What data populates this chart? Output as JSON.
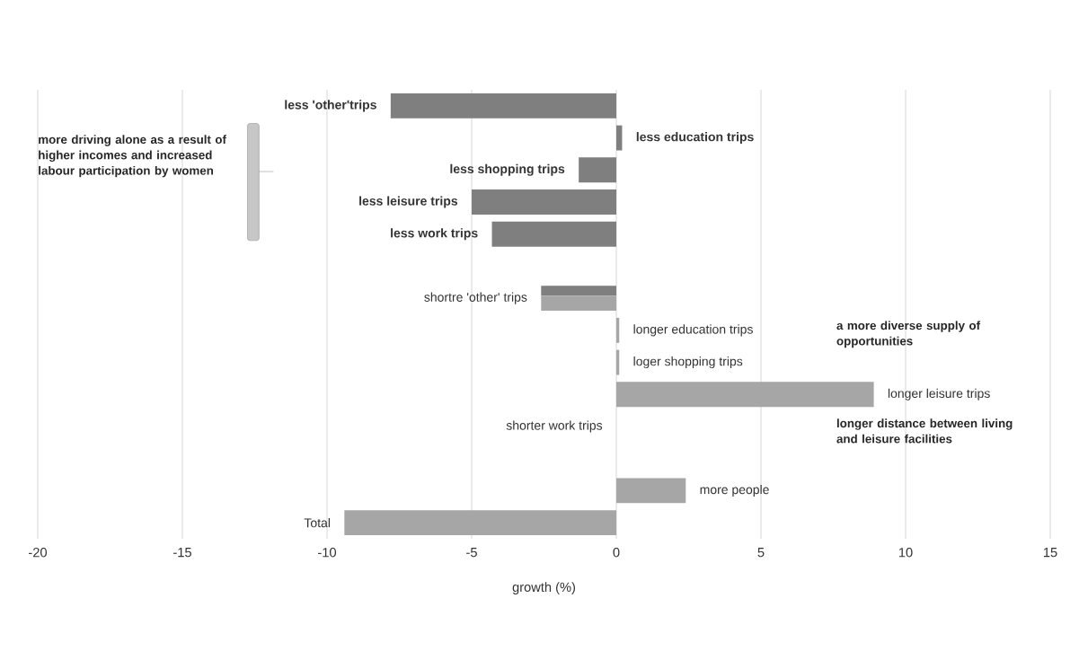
{
  "chart_data": {
    "type": "bar",
    "orientation": "horizontal",
    "categories": [
      "less 'other'trips",
      "less education trips",
      "less shopping trips",
      "less leisure trips",
      "less work trips",
      null,
      "shortre 'other' trips",
      "longer education trips",
      "loger shopping trips",
      "longer leisure trips",
      "shorter work trips",
      null,
      "more people",
      "Total"
    ],
    "series": [
      {
        "color": "#7f7f7f",
        "values": [
          -7.8,
          0.2,
          -1.3,
          -5.0,
          -4.3,
          null,
          -2.6,
          null,
          null,
          null,
          null,
          null,
          null,
          null
        ]
      },
      {
        "color": "#a6a6a6",
        "values": [
          null,
          null,
          null,
          null,
          null,
          null,
          -2.6,
          0.1,
          0.1,
          8.9,
          0,
          null,
          2.4,
          -9.4
        ]
      }
    ],
    "xlim": [
      -20,
      15
    ],
    "xticks": [
      -20,
      -15,
      -10,
      -5,
      0,
      5,
      10,
      15
    ],
    "xlabel": "growth (%)",
    "grid": "x",
    "annotations": [
      "more driving alone as a result of higher incomes and increased labour participation by women",
      "a more diverse supply of opportunities",
      "longer distance between living and leisure facilities"
    ]
  }
}
